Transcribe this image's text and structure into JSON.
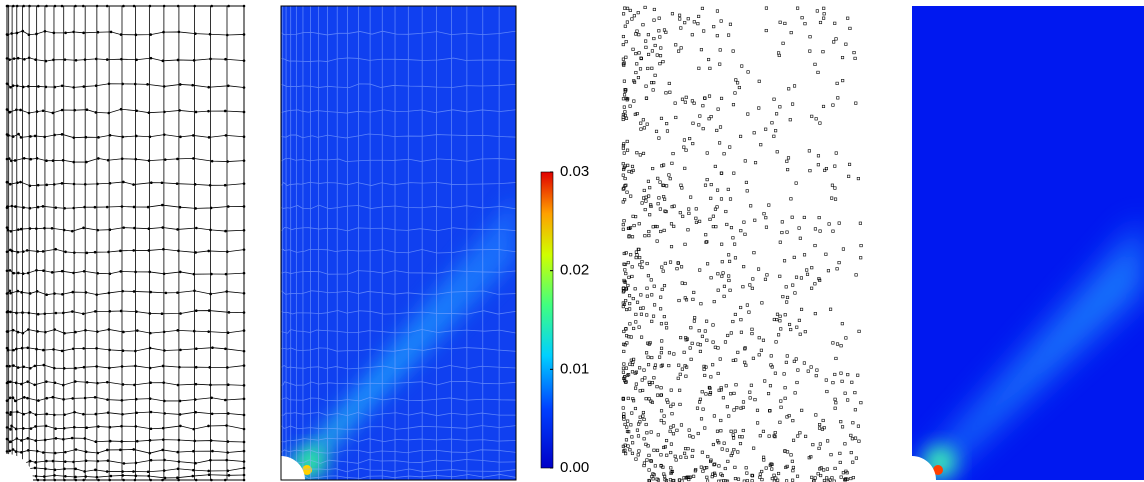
{
  "colorbar": {
    "range": [
      0,
      0.03
    ],
    "ticks": [
      {
        "value": 0,
        "label": "0.00"
      },
      0.01,
      0.02,
      0.03
    ]
  }
}
